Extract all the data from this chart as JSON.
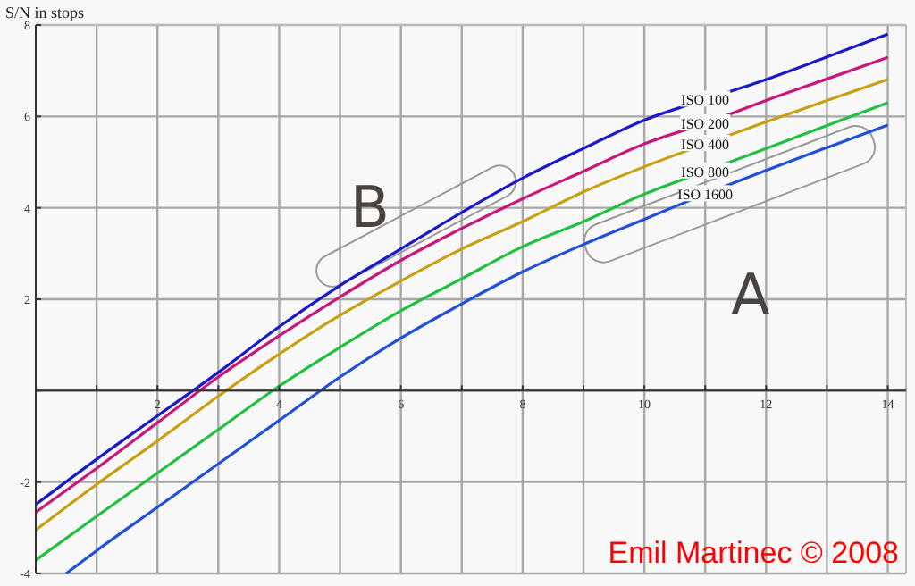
{
  "chart_data": {
    "type": "line",
    "ylabel": "S/N in stops",
    "x": [
      0,
      1,
      2,
      3,
      4,
      5,
      6,
      7,
      8,
      9,
      10,
      11,
      12,
      13,
      14
    ],
    "xlim": [
      0,
      14.3
    ],
    "ylim": [
      -4,
      8
    ],
    "xticks": [
      {
        "value": 1,
        "label": null
      },
      2,
      {
        "value": 3,
        "label": null
      },
      4,
      {
        "value": 5,
        "label": null
      },
      6,
      {
        "value": 7,
        "label": null
      },
      8,
      {
        "value": 9,
        "label": null
      },
      10,
      {
        "value": 11,
        "label": null
      },
      12,
      {
        "value": 13,
        "label": null
      },
      14
    ],
    "yticks": [
      -4,
      -2,
      {
        "value": 0,
        "label": null
      },
      2,
      4,
      6,
      8
    ],
    "grid": true,
    "marker": "none",
    "line_style": "solid",
    "series": [
      {
        "name": "ISO 100",
        "color": "#1a1ac8",
        "values": [
          -2.49,
          -1.5,
          -0.55,
          0.4,
          1.4,
          2.3,
          3.1,
          3.9,
          4.65,
          5.3,
          5.92,
          6.37,
          6.81,
          7.3,
          7.8
        ]
      },
      {
        "name": "ISO 200",
        "color": "#c8187a",
        "values": [
          -2.66,
          -1.7,
          -0.7,
          0.3,
          1.2,
          2.05,
          2.85,
          3.55,
          4.2,
          4.8,
          5.4,
          5.85,
          6.35,
          6.82,
          7.29
        ]
      },
      {
        "name": "ISO 400",
        "color": "#c8a010",
        "values": [
          -3.05,
          -2.05,
          -1.1,
          -0.12,
          0.8,
          1.65,
          2.4,
          3.1,
          3.7,
          4.35,
          4.9,
          5.4,
          5.88,
          6.35,
          6.81
        ]
      },
      {
        "name": "ISO 800",
        "color": "#20c040",
        "values": [
          -3.71,
          -2.75,
          -1.8,
          -0.85,
          0.1,
          0.95,
          1.75,
          2.45,
          3.15,
          3.7,
          4.3,
          4.8,
          5.3,
          5.8,
          6.3
        ]
      },
      {
        "name": "ISO 1600",
        "color": "#2050d8",
        "x": [
          0.5,
          1,
          2,
          3,
          4,
          5,
          6,
          7,
          8,
          9,
          10,
          11,
          12,
          13,
          14
        ],
        "values": [
          -4,
          -3.5,
          -2.55,
          -1.6,
          -0.65,
          0.3,
          1.15,
          1.9,
          2.6,
          3.2,
          3.75,
          4.3,
          4.82,
          5.32,
          5.81
        ]
      }
    ],
    "annotations": [
      "B",
      "A",
      "Emil Martinec © 2008"
    ]
  }
}
